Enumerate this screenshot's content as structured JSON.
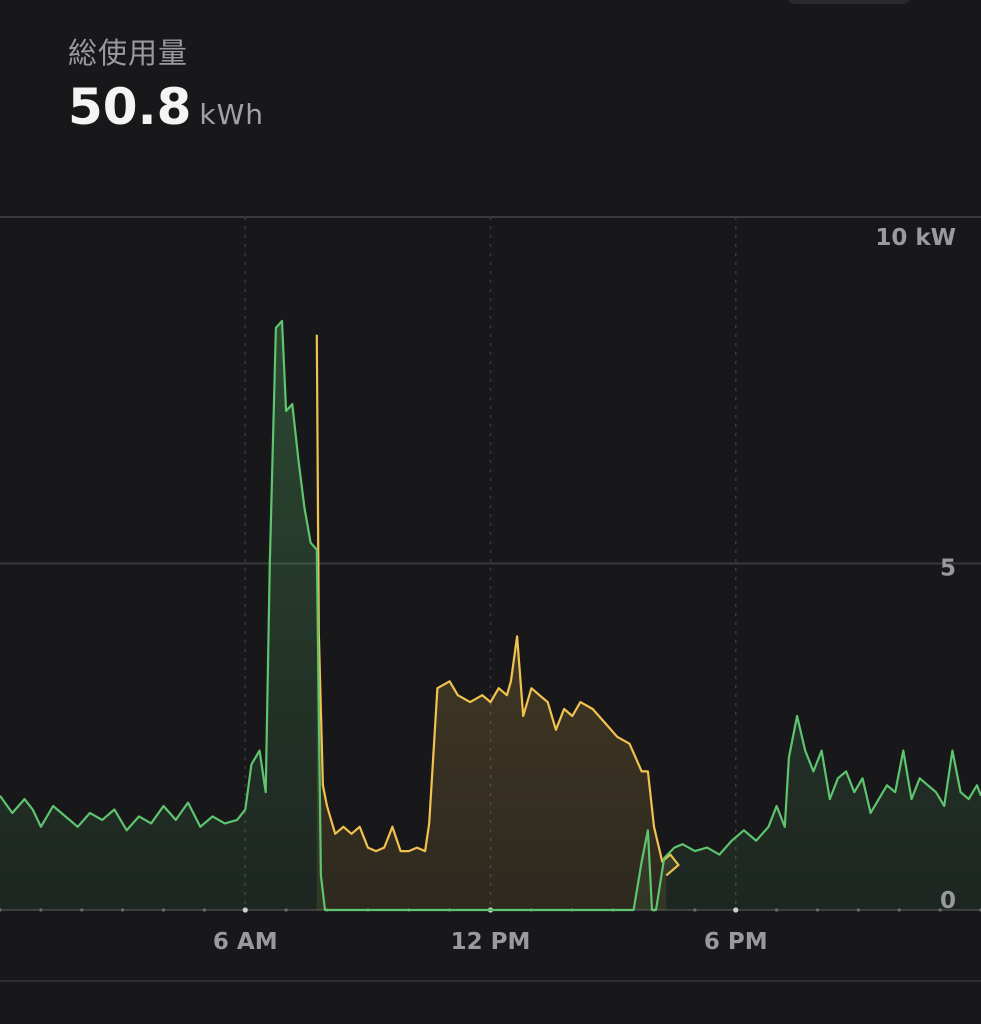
{
  "header": {
    "title": "総使用量",
    "total_value": "50.8",
    "total_unit": "kWh"
  },
  "colors": {
    "background": "#18181a",
    "grid": "#3a3a3d",
    "consumption": "#5fc46f",
    "secondary": "#f2c24f",
    "label": "#9a9a9e"
  },
  "chart_data": {
    "type": "area",
    "xlim": [
      0,
      24
    ],
    "ylim": [
      0,
      10
    ],
    "y_ticks": [
      {
        "value": 0,
        "label": "0"
      },
      {
        "value": 5,
        "label": "5"
      },
      {
        "value": 10,
        "label": "10 kW"
      }
    ],
    "x_ticks": [
      {
        "value": 6,
        "label": "6 AM"
      },
      {
        "value": 12,
        "label": "12 PM"
      },
      {
        "value": 18,
        "label": "6 PM"
      }
    ],
    "grid": true,
    "series": [
      {
        "color": "#f2c24f",
        "points": [
          [
            7.75,
            8.3
          ],
          [
            7.8,
            4.0
          ],
          [
            7.9,
            1.8
          ],
          [
            8.0,
            1.5
          ],
          [
            8.2,
            1.1
          ],
          [
            8.4,
            1.2
          ],
          [
            8.6,
            1.1
          ],
          [
            8.8,
            1.2
          ],
          [
            9.0,
            0.9
          ],
          [
            9.2,
            0.85
          ],
          [
            9.4,
            0.9
          ],
          [
            9.6,
            1.2
          ],
          [
            9.8,
            0.85
          ],
          [
            10.0,
            0.85
          ],
          [
            10.2,
            0.9
          ],
          [
            10.4,
            0.85
          ],
          [
            10.5,
            1.25
          ],
          [
            10.7,
            3.2
          ],
          [
            11.0,
            3.3
          ],
          [
            11.2,
            3.1
          ],
          [
            11.5,
            3.0
          ],
          [
            11.8,
            3.1
          ],
          [
            12.0,
            3.0
          ],
          [
            12.2,
            3.2
          ],
          [
            12.4,
            3.1
          ],
          [
            12.5,
            3.3
          ],
          [
            12.65,
            3.95
          ],
          [
            12.8,
            2.8
          ],
          [
            13.0,
            3.2
          ],
          [
            13.2,
            3.1
          ],
          [
            13.4,
            3.0
          ],
          [
            13.6,
            2.6
          ],
          [
            13.8,
            2.9
          ],
          [
            14.0,
            2.8
          ],
          [
            14.2,
            3.0
          ],
          [
            14.5,
            2.9
          ],
          [
            14.8,
            2.7
          ],
          [
            15.1,
            2.5
          ],
          [
            15.4,
            2.4
          ],
          [
            15.7,
            2.0
          ],
          [
            15.85,
            2.0
          ],
          [
            16.0,
            1.2
          ],
          [
            16.2,
            0.7
          ],
          [
            16.4,
            0.8
          ],
          [
            16.6,
            0.65
          ],
          [
            16.3,
            0.5
          ]
        ]
      },
      {
        "color": "#5fc46f",
        "points": [
          [
            0.0,
            1.65
          ],
          [
            0.3,
            1.4
          ],
          [
            0.6,
            1.6
          ],
          [
            0.8,
            1.45
          ],
          [
            1.0,
            1.2
          ],
          [
            1.3,
            1.5
          ],
          [
            1.6,
            1.35
          ],
          [
            1.9,
            1.2
          ],
          [
            2.2,
            1.4
          ],
          [
            2.5,
            1.3
          ],
          [
            2.8,
            1.45
          ],
          [
            3.1,
            1.15
          ],
          [
            3.4,
            1.35
          ],
          [
            3.7,
            1.25
          ],
          [
            4.0,
            1.5
          ],
          [
            4.3,
            1.3
          ],
          [
            4.6,
            1.55
          ],
          [
            4.9,
            1.2
          ],
          [
            5.2,
            1.35
          ],
          [
            5.5,
            1.25
          ],
          [
            5.8,
            1.3
          ],
          [
            6.0,
            1.45
          ],
          [
            6.15,
            2.1
          ],
          [
            6.35,
            2.3
          ],
          [
            6.5,
            1.7
          ],
          [
            6.6,
            5.0
          ],
          [
            6.75,
            8.4
          ],
          [
            6.9,
            8.5
          ],
          [
            7.0,
            7.2
          ],
          [
            7.15,
            7.3
          ],
          [
            7.3,
            6.5
          ],
          [
            7.45,
            5.8
          ],
          [
            7.6,
            5.3
          ],
          [
            7.75,
            5.2
          ],
          [
            7.85,
            0.5
          ],
          [
            7.95,
            0.0
          ],
          [
            15.5,
            0.0
          ],
          [
            15.7,
            0.7
          ],
          [
            15.85,
            1.15
          ],
          [
            15.95,
            0.0
          ],
          [
            16.05,
            0.0
          ],
          [
            16.25,
            0.75
          ],
          [
            16.5,
            0.9
          ],
          [
            16.7,
            0.95
          ],
          [
            17.0,
            0.85
          ],
          [
            17.3,
            0.9
          ],
          [
            17.6,
            0.8
          ],
          [
            17.9,
            1.0
          ],
          [
            18.2,
            1.15
          ],
          [
            18.5,
            1.0
          ],
          [
            18.8,
            1.2
          ],
          [
            19.0,
            1.5
          ],
          [
            19.2,
            1.2
          ],
          [
            19.3,
            2.2
          ],
          [
            19.5,
            2.8
          ],
          [
            19.7,
            2.3
          ],
          [
            19.9,
            2.0
          ],
          [
            20.1,
            2.3
          ],
          [
            20.3,
            1.6
          ],
          [
            20.5,
            1.9
          ],
          [
            20.7,
            2.0
          ],
          [
            20.9,
            1.7
          ],
          [
            21.1,
            1.9
          ],
          [
            21.3,
            1.4
          ],
          [
            21.5,
            1.6
          ],
          [
            21.7,
            1.8
          ],
          [
            21.9,
            1.7
          ],
          [
            22.1,
            2.3
          ],
          [
            22.3,
            1.6
          ],
          [
            22.5,
            1.9
          ],
          [
            22.7,
            1.8
          ],
          [
            22.9,
            1.7
          ],
          [
            23.1,
            1.5
          ],
          [
            23.3,
            2.3
          ],
          [
            23.5,
            1.7
          ],
          [
            23.7,
            1.6
          ],
          [
            23.9,
            1.8
          ],
          [
            24.0,
            1.65
          ]
        ]
      }
    ]
  }
}
